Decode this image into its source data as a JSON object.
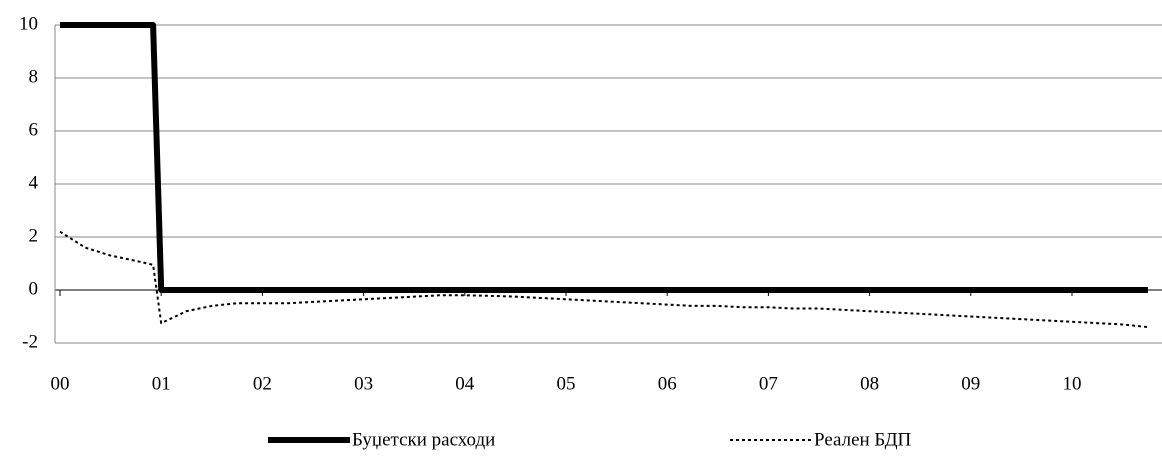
{
  "chart_data": {
    "type": "line",
    "x": [
      0,
      0.25,
      0.5,
      0.75,
      0.92,
      1.0,
      1.25,
      1.5,
      1.75,
      2.0,
      2.25,
      2.5,
      2.75,
      3.0,
      3.25,
      3.5,
      3.75,
      4.0,
      4.25,
      4.5,
      4.75,
      5.0,
      5.25,
      5.5,
      5.75,
      6.0,
      6.25,
      6.5,
      6.75,
      7.0,
      7.25,
      7.5,
      7.75,
      8.0,
      8.25,
      8.5,
      8.75,
      9.0,
      9.25,
      9.5,
      9.75,
      10.0,
      10.25,
      10.5,
      10.75
    ],
    "series": [
      {
        "name": "Буџетски расходи",
        "color": "#000000",
        "style": "solid",
        "values": [
          10,
          10,
          10,
          10,
          10,
          0,
          0,
          0,
          0,
          0,
          0,
          0,
          0,
          0,
          0,
          0,
          0,
          0,
          0,
          0,
          0,
          0,
          0,
          0,
          0,
          0,
          0,
          0,
          0,
          0,
          0,
          0,
          0,
          0,
          0,
          0,
          0,
          0,
          0,
          0,
          0,
          0,
          0,
          0,
          0
        ]
      },
      {
        "name": "Реален БДП",
        "color": "#000000",
        "style": "dotted",
        "values": [
          2.2,
          1.6,
          1.3,
          1.1,
          0.95,
          -1.25,
          -0.8,
          -0.6,
          -0.5,
          -0.5,
          -0.5,
          -0.45,
          -0.4,
          -0.35,
          -0.3,
          -0.25,
          -0.2,
          -0.2,
          -0.22,
          -0.25,
          -0.3,
          -0.35,
          -0.4,
          -0.45,
          -0.5,
          -0.55,
          -0.6,
          -0.6,
          -0.65,
          -0.65,
          -0.7,
          -0.7,
          -0.75,
          -0.8,
          -0.85,
          -0.9,
          -0.95,
          -1.0,
          -1.05,
          -1.1,
          -1.15,
          -1.2,
          -1.25,
          -1.3,
          -1.4
        ]
      }
    ],
    "xlim": [
      0,
      10.89
    ],
    "xticks": [
      {
        "value": 0,
        "label": "00"
      },
      {
        "value": 1,
        "label": "01"
      },
      {
        "value": 2,
        "label": "02"
      },
      {
        "value": 3,
        "label": "03"
      },
      {
        "value": 4,
        "label": "04"
      },
      {
        "value": 5,
        "label": "05"
      },
      {
        "value": 6,
        "label": "06"
      },
      {
        "value": 7,
        "label": "07"
      },
      {
        "value": 8,
        "label": "08"
      },
      {
        "value": 9,
        "label": "09"
      },
      {
        "value": 10,
        "label": "10"
      }
    ],
    "ylim": [
      -2,
      10
    ],
    "yticks": [
      -2,
      0,
      2,
      4,
      6,
      8,
      10
    ],
    "grid": true,
    "legend": "bottom"
  }
}
